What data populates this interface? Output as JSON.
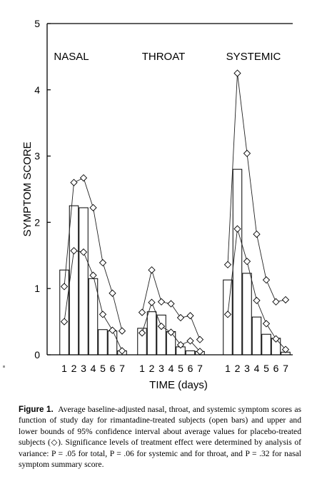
{
  "chart_data": {
    "type": "bar",
    "ylabel": "SYMPTOM SCORE",
    "xlabel": "TIME (days)",
    "ylim": [
      0,
      5
    ],
    "yticks": [
      "0",
      "1",
      "2",
      "3",
      "4",
      "5"
    ],
    "grid": false,
    "panels": [
      {
        "label": "NASAL",
        "days": [
          "1",
          "2",
          "3",
          "4",
          "5",
          "6",
          "7"
        ],
        "bars": [
          1.28,
          2.25,
          2.22,
          1.15,
          0.38,
          0.36,
          0.06
        ],
        "upper": [
          1.03,
          2.6,
          2.67,
          2.22,
          1.39,
          0.93,
          0.36
        ],
        "lower": [
          0.5,
          1.57,
          1.55,
          1.2,
          0.61,
          0.37,
          0.06
        ]
      },
      {
        "label": "THROAT",
        "days": [
          "1",
          "2",
          "3",
          "4",
          "5",
          "6",
          "7"
        ],
        "bars": [
          0.4,
          0.65,
          0.6,
          0.35,
          0.12,
          0.06,
          0.05
        ],
        "upper": [
          0.64,
          1.28,
          0.8,
          0.77,
          0.56,
          0.59,
          0.23
        ],
        "lower": [
          0.33,
          0.79,
          0.43,
          0.34,
          0.15,
          0.21,
          0.05
        ]
      },
      {
        "label": "SYSTEMIC",
        "days": [
          "1",
          "2",
          "3",
          "4",
          "5",
          "6",
          "7"
        ],
        "bars": [
          1.13,
          2.8,
          1.23,
          0.57,
          0.31,
          0.25,
          0.04
        ],
        "upper": [
          1.36,
          4.25,
          3.04,
          1.82,
          1.13,
          0.8,
          0.83
        ],
        "lower": [
          0.61,
          1.9,
          1.41,
          0.82,
          0.47,
          0.24,
          0.08
        ]
      }
    ]
  },
  "caption": {
    "lead": "Figure 1.",
    "text": "Average baseline-adjusted nasal, throat, and systemic symptom scores as function of study day for rimantadine-treated subjects (open bars) and upper and lower bounds of 95% confidence interval about average values for placebo-treated subjects (◇). Significance levels of treatment effect were determined by analysis of variance: P = .05 for total, P = .06 for systemic and for throat, and P = .32 for nasal symptom summary score."
  }
}
